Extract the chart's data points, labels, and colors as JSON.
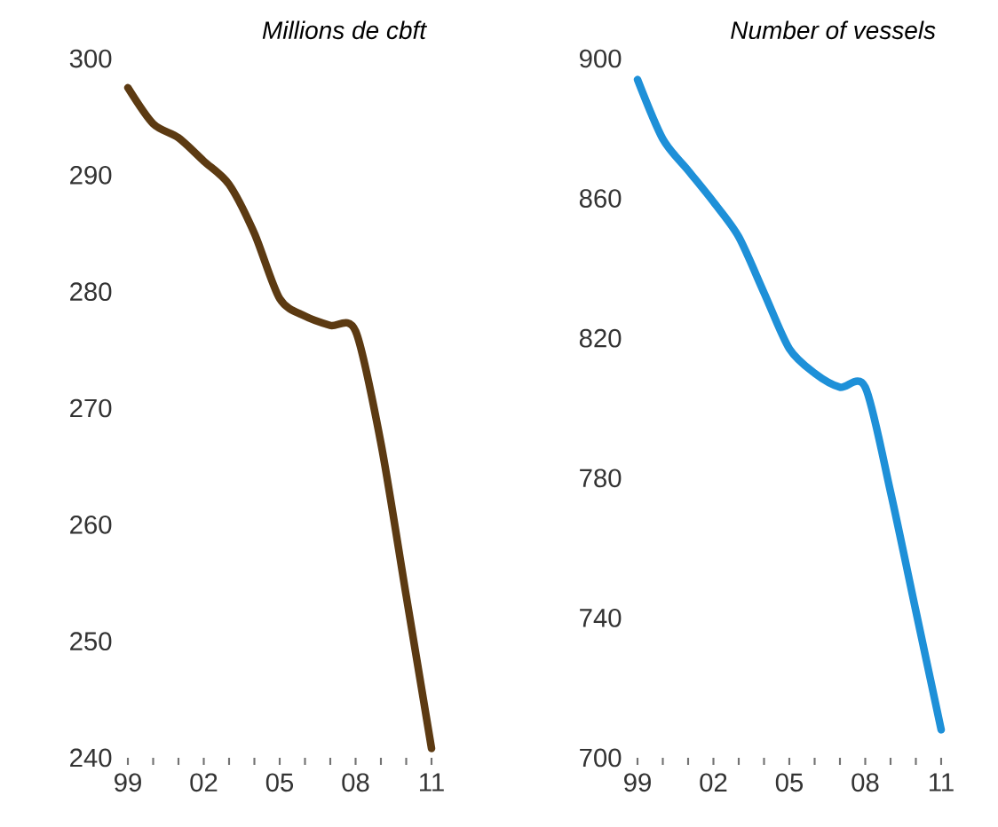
{
  "chart_data": [
    {
      "type": "line",
      "title": "Millions de cbft",
      "marker": "none",
      "x": [
        1999,
        2000,
        2001,
        2002,
        2003,
        2004,
        2005,
        2006,
        2007,
        2008,
        2009,
        2010,
        2011
      ],
      "series": [
        {
          "color": "#5c3a12",
          "values": [
            297.5,
            294.4,
            293.2,
            291.2,
            289.2,
            285,
            279.4,
            277.9,
            277.1,
            276.6,
            267,
            253.9,
            240.8
          ]
        }
      ],
      "xlim": [
        1999,
        2011
      ],
      "ylim": [
        240,
        300
      ],
      "xticks": [
        {
          "value": 1999,
          "label": "99"
        },
        {
          "value": 2000,
          "label": null
        },
        {
          "value": 2001,
          "label": null
        },
        {
          "value": 2002,
          "label": "02"
        },
        {
          "value": 2003,
          "label": null
        },
        {
          "value": 2004,
          "label": null
        },
        {
          "value": 2005,
          "label": "05"
        },
        {
          "value": 2006,
          "label": null
        },
        {
          "value": 2007,
          "label": null
        },
        {
          "value": 2008,
          "label": "08"
        },
        {
          "value": 2009,
          "label": null
        },
        {
          "value": 2010,
          "label": null
        },
        {
          "value": 2011,
          "label": "11"
        }
      ],
      "yticks": [
        240,
        250,
        260,
        270,
        280,
        290,
        300
      ]
    },
    {
      "type": "line",
      "title": "Number of vessels",
      "marker": "none",
      "x": [
        1999,
        2000,
        2001,
        2002,
        2003,
        2004,
        2005,
        2006,
        2007,
        2008,
        2009,
        2010,
        2011
      ],
      "series": [
        {
          "color": "#1e90d8",
          "values": [
            894,
            877,
            868,
            859,
            849,
            833,
            817,
            810,
            806,
            806,
            776,
            742,
            708
          ]
        }
      ],
      "xlim": [
        1999,
        2011
      ],
      "ylim": [
        700,
        900
      ],
      "xticks": [
        {
          "value": 1999,
          "label": "99"
        },
        {
          "value": 2000,
          "label": null
        },
        {
          "value": 2001,
          "label": null
        },
        {
          "value": 2002,
          "label": "02"
        },
        {
          "value": 2003,
          "label": null
        },
        {
          "value": 2004,
          "label": null
        },
        {
          "value": 2005,
          "label": "05"
        },
        {
          "value": 2006,
          "label": null
        },
        {
          "value": 2007,
          "label": null
        },
        {
          "value": 2008,
          "label": "08"
        },
        {
          "value": 2009,
          "label": null
        },
        {
          "value": 2010,
          "label": null
        },
        {
          "value": 2011,
          "label": "11"
        }
      ],
      "yticks": [
        700,
        740,
        780,
        820,
        860,
        900
      ]
    }
  ]
}
